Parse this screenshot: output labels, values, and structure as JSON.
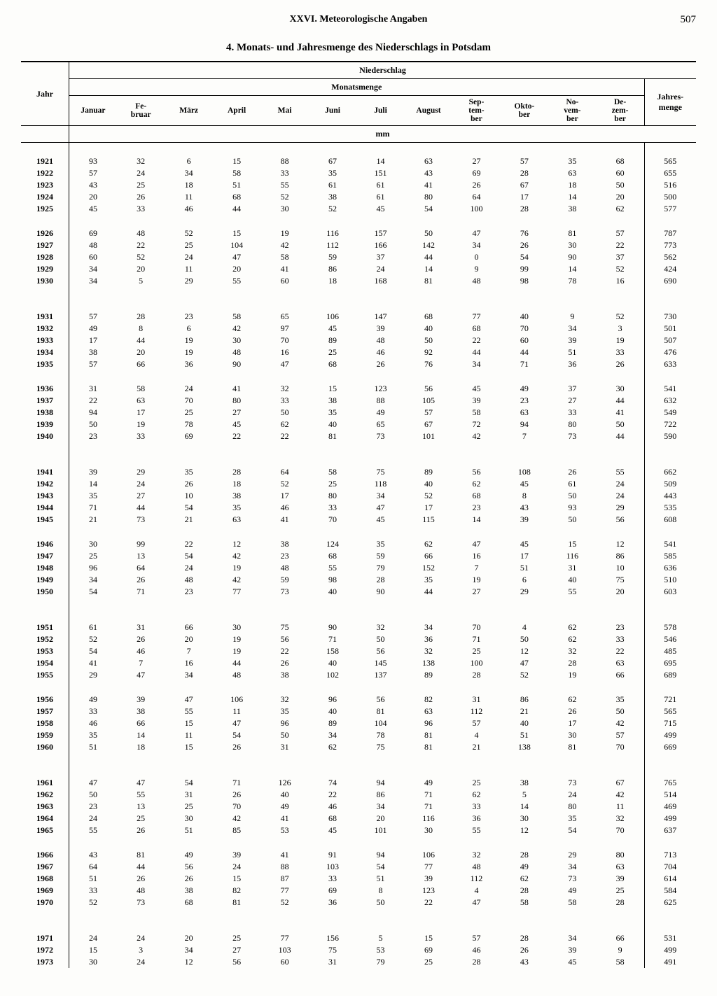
{
  "header": {
    "section": "XXVI. Meteorologische Angaben",
    "page_number": "507",
    "title": "4. Monats- und Jahresmenge des Niederschlags in Potsdam"
  },
  "columns": {
    "year": "Jahr",
    "super": "Niederschlag",
    "months_header": "Monatsmenge",
    "unit": "mm",
    "months": [
      "Januar",
      "Fe-\nbruar",
      "März",
      "April",
      "Mai",
      "Juni",
      "Juli",
      "August",
      "Sep-\ntem-\nber",
      "Okto-\nber",
      "No-\nvem-\nber",
      "De-\nzem-\nber"
    ],
    "total": "Jahres-\nmenge"
  },
  "groups": [
    {
      "big_gap_before": false,
      "rows": [
        {
          "y": "1921",
          "m": [
            "93",
            "32",
            "6",
            "15",
            "88",
            "67",
            "14",
            "63",
            "27",
            "57",
            "35",
            "68"
          ],
          "t": "565"
        },
        {
          "y": "1922",
          "m": [
            "57",
            "24",
            "34",
            "58",
            "33",
            "35",
            "151",
            "43",
            "69",
            "28",
            "63",
            "60"
          ],
          "t": "655"
        },
        {
          "y": "1923",
          "m": [
            "43",
            "25",
            "18",
            "51",
            "55",
            "61",
            "61",
            "41",
            "26",
            "67",
            "18",
            "50"
          ],
          "t": "516"
        },
        {
          "y": "1924",
          "m": [
            "20",
            "26",
            "11",
            "68",
            "52",
            "38",
            "61",
            "80",
            "64",
            "17",
            "14",
            "20"
          ],
          "t": "500"
        },
        {
          "y": "1925",
          "m": [
            "45",
            "33",
            "46",
            "44",
            "30",
            "52",
            "45",
            "54",
            "100",
            "28",
            "38",
            "62"
          ],
          "t": "577"
        }
      ]
    },
    {
      "rows": [
        {
          "y": "1926",
          "m": [
            "69",
            "48",
            "52",
            "15",
            "19",
            "116",
            "157",
            "50",
            "47",
            "76",
            "81",
            "57"
          ],
          "t": "787"
        },
        {
          "y": "1927",
          "m": [
            "48",
            "22",
            "25",
            "104",
            "42",
            "112",
            "166",
            "142",
            "34",
            "26",
            "30",
            "22"
          ],
          "t": "773"
        },
        {
          "y": "1928",
          "m": [
            "60",
            "52",
            "24",
            "47",
            "58",
            "59",
            "37",
            "44",
            "0",
            "54",
            "90",
            "37"
          ],
          "t": "562"
        },
        {
          "y": "1929",
          "m": [
            "34",
            "20",
            "11",
            "20",
            "41",
            "86",
            "24",
            "14",
            "9",
            "99",
            "14",
            "52"
          ],
          "t": "424"
        },
        {
          "y": "1930",
          "m": [
            "34",
            "5",
            "29",
            "55",
            "60",
            "18",
            "168",
            "81",
            "48",
            "98",
            "78",
            "16"
          ],
          "t": "690"
        }
      ]
    },
    {
      "big_gap_before": true,
      "rows": [
        {
          "y": "1931",
          "m": [
            "57",
            "28",
            "23",
            "58",
            "65",
            "106",
            "147",
            "68",
            "77",
            "40",
            "9",
            "52"
          ],
          "t": "730"
        },
        {
          "y": "1932",
          "m": [
            "49",
            "8",
            "6",
            "42",
            "97",
            "45",
            "39",
            "40",
            "68",
            "70",
            "34",
            "3"
          ],
          "t": "501"
        },
        {
          "y": "1933",
          "m": [
            "17",
            "44",
            "19",
            "30",
            "70",
            "89",
            "48",
            "50",
            "22",
            "60",
            "39",
            "19"
          ],
          "t": "507"
        },
        {
          "y": "1934",
          "m": [
            "38",
            "20",
            "19",
            "48",
            "16",
            "25",
            "46",
            "92",
            "44",
            "44",
            "51",
            "33"
          ],
          "t": "476"
        },
        {
          "y": "1935",
          "m": [
            "57",
            "66",
            "36",
            "90",
            "47",
            "68",
            "26",
            "76",
            "34",
            "71",
            "36",
            "26"
          ],
          "t": "633"
        }
      ]
    },
    {
      "rows": [
        {
          "y": "1936",
          "m": [
            "31",
            "58",
            "24",
            "41",
            "32",
            "15",
            "123",
            "56",
            "45",
            "49",
            "37",
            "30"
          ],
          "t": "541"
        },
        {
          "y": "1937",
          "m": [
            "22",
            "63",
            "70",
            "80",
            "33",
            "38",
            "88",
            "105",
            "39",
            "23",
            "27",
            "44"
          ],
          "t": "632"
        },
        {
          "y": "1938",
          "m": [
            "94",
            "17",
            "25",
            "27",
            "50",
            "35",
            "49",
            "57",
            "58",
            "63",
            "33",
            "41"
          ],
          "t": "549"
        },
        {
          "y": "1939",
          "m": [
            "50",
            "19",
            "78",
            "45",
            "62",
            "40",
            "65",
            "67",
            "72",
            "94",
            "80",
            "50"
          ],
          "t": "722"
        },
        {
          "y": "1940",
          "m": [
            "23",
            "33",
            "69",
            "22",
            "22",
            "81",
            "73",
            "101",
            "42",
            "7",
            "73",
            "44"
          ],
          "t": "590"
        }
      ]
    },
    {
      "big_gap_before": true,
      "rows": [
        {
          "y": "1941",
          "m": [
            "39",
            "29",
            "35",
            "28",
            "64",
            "58",
            "75",
            "89",
            "56",
            "108",
            "26",
            "55"
          ],
          "t": "662"
        },
        {
          "y": "1942",
          "m": [
            "14",
            "24",
            "26",
            "18",
            "52",
            "25",
            "118",
            "40",
            "62",
            "45",
            "61",
            "24"
          ],
          "t": "509"
        },
        {
          "y": "1943",
          "m": [
            "35",
            "27",
            "10",
            "38",
            "17",
            "80",
            "34",
            "52",
            "68",
            "8",
            "50",
            "24"
          ],
          "t": "443"
        },
        {
          "y": "1944",
          "m": [
            "71",
            "44",
            "54",
            "35",
            "46",
            "33",
            "47",
            "17",
            "23",
            "43",
            "93",
            "29"
          ],
          "t": "535"
        },
        {
          "y": "1945",
          "m": [
            "21",
            "73",
            "21",
            "63",
            "41",
            "70",
            "45",
            "115",
            "14",
            "39",
            "50",
            "56"
          ],
          "t": "608"
        }
      ]
    },
    {
      "rows": [
        {
          "y": "1946",
          "m": [
            "30",
            "99",
            "22",
            "12",
            "38",
            "124",
            "35",
            "62",
            "47",
            "45",
            "15",
            "12"
          ],
          "t": "541"
        },
        {
          "y": "1947",
          "m": [
            "25",
            "13",
            "54",
            "42",
            "23",
            "68",
            "59",
            "66",
            "16",
            "17",
            "116",
            "86"
          ],
          "t": "585"
        },
        {
          "y": "1948",
          "m": [
            "96",
            "64",
            "24",
            "19",
            "48",
            "55",
            "79",
            "152",
            "7",
            "51",
            "31",
            "10"
          ],
          "t": "636"
        },
        {
          "y": "1949",
          "m": [
            "34",
            "26",
            "48",
            "42",
            "59",
            "98",
            "28",
            "35",
            "19",
            "6",
            "40",
            "75"
          ],
          "t": "510"
        },
        {
          "y": "1950",
          "m": [
            "54",
            "71",
            "23",
            "77",
            "73",
            "40",
            "90",
            "44",
            "27",
            "29",
            "55",
            "20"
          ],
          "t": "603"
        }
      ]
    },
    {
      "big_gap_before": true,
      "rows": [
        {
          "y": "1951",
          "m": [
            "61",
            "31",
            "66",
            "30",
            "75",
            "90",
            "32",
            "34",
            "70",
            "4",
            "62",
            "23"
          ],
          "t": "578"
        },
        {
          "y": "1952",
          "m": [
            "52",
            "26",
            "20",
            "19",
            "56",
            "71",
            "50",
            "36",
            "71",
            "50",
            "62",
            "33"
          ],
          "t": "546"
        },
        {
          "y": "1953",
          "m": [
            "54",
            "46",
            "7",
            "19",
            "22",
            "158",
            "56",
            "32",
            "25",
            "12",
            "32",
            "22"
          ],
          "t": "485"
        },
        {
          "y": "1954",
          "m": [
            "41",
            "7",
            "16",
            "44",
            "26",
            "40",
            "145",
            "138",
            "100",
            "47",
            "28",
            "63"
          ],
          "t": "695"
        },
        {
          "y": "1955",
          "m": [
            "29",
            "47",
            "34",
            "48",
            "38",
            "102",
            "137",
            "89",
            "28",
            "52",
            "19",
            "66"
          ],
          "t": "689"
        }
      ]
    },
    {
      "rows": [
        {
          "y": "1956",
          "m": [
            "49",
            "39",
            "47",
            "106",
            "32",
            "96",
            "56",
            "82",
            "31",
            "86",
            "62",
            "35"
          ],
          "t": "721"
        },
        {
          "y": "1957",
          "m": [
            "33",
            "38",
            "55",
            "11",
            "35",
            "40",
            "81",
            "63",
            "112",
            "21",
            "26",
            "50"
          ],
          "t": "565"
        },
        {
          "y": "1958",
          "m": [
            "46",
            "66",
            "15",
            "47",
            "96",
            "89",
            "104",
            "96",
            "57",
            "40",
            "17",
            "42"
          ],
          "t": "715"
        },
        {
          "y": "1959",
          "m": [
            "35",
            "14",
            "11",
            "54",
            "50",
            "34",
            "78",
            "81",
            "4",
            "51",
            "30",
            "57"
          ],
          "t": "499"
        },
        {
          "y": "1960",
          "m": [
            "51",
            "18",
            "15",
            "26",
            "31",
            "62",
            "75",
            "81",
            "21",
            "138",
            "81",
            "70"
          ],
          "t": "669"
        }
      ]
    },
    {
      "big_gap_before": true,
      "rows": [
        {
          "y": "1961",
          "m": [
            "47",
            "47",
            "54",
            "71",
            "126",
            "74",
            "94",
            "49",
            "25",
            "38",
            "73",
            "67"
          ],
          "t": "765"
        },
        {
          "y": "1962",
          "m": [
            "50",
            "55",
            "31",
            "26",
            "40",
            "22",
            "86",
            "71",
            "62",
            "5",
            "24",
            "42"
          ],
          "t": "514"
        },
        {
          "y": "1963",
          "m": [
            "23",
            "13",
            "25",
            "70",
            "49",
            "46",
            "34",
            "71",
            "33",
            "14",
            "80",
            "11"
          ],
          "t": "469"
        },
        {
          "y": "1964",
          "m": [
            "24",
            "25",
            "30",
            "42",
            "41",
            "68",
            "20",
            "116",
            "36",
            "30",
            "35",
            "32"
          ],
          "t": "499"
        },
        {
          "y": "1965",
          "m": [
            "55",
            "26",
            "51",
            "85",
            "53",
            "45",
            "101",
            "30",
            "55",
            "12",
            "54",
            "70"
          ],
          "t": "637"
        }
      ]
    },
    {
      "rows": [
        {
          "y": "1966",
          "m": [
            "43",
            "81",
            "49",
            "39",
            "41",
            "91",
            "94",
            "106",
            "32",
            "28",
            "29",
            "80"
          ],
          "t": "713"
        },
        {
          "y": "1967",
          "m": [
            "64",
            "44",
            "56",
            "24",
            "88",
            "103",
            "54",
            "77",
            "48",
            "49",
            "34",
            "63"
          ],
          "t": "704"
        },
        {
          "y": "1968",
          "m": [
            "51",
            "26",
            "26",
            "15",
            "87",
            "33",
            "51",
            "39",
            "112",
            "62",
            "73",
            "39"
          ],
          "t": "614"
        },
        {
          "y": "1969",
          "m": [
            "33",
            "48",
            "38",
            "82",
            "77",
            "69",
            "8",
            "123",
            "4",
            "28",
            "49",
            "25"
          ],
          "t": "584"
        },
        {
          "y": "1970",
          "m": [
            "52",
            "73",
            "68",
            "81",
            "52",
            "36",
            "50",
            "22",
            "47",
            "58",
            "58",
            "28"
          ],
          "t": "625"
        }
      ]
    },
    {
      "big_gap_before": true,
      "rows": [
        {
          "y": "1971",
          "m": [
            "24",
            "24",
            "20",
            "25",
            "77",
            "156",
            "5",
            "15",
            "57",
            "28",
            "34",
            "66"
          ],
          "t": "531"
        },
        {
          "y": "1972",
          "m": [
            "15",
            "3",
            "34",
            "27",
            "103",
            "75",
            "53",
            "69",
            "46",
            "26",
            "39",
            "9"
          ],
          "t": "499"
        },
        {
          "y": "1973",
          "m": [
            "30",
            "24",
            "12",
            "56",
            "60",
            "31",
            "79",
            "25",
            "28",
            "43",
            "45",
            "58"
          ],
          "t": "491"
        }
      ]
    }
  ]
}
